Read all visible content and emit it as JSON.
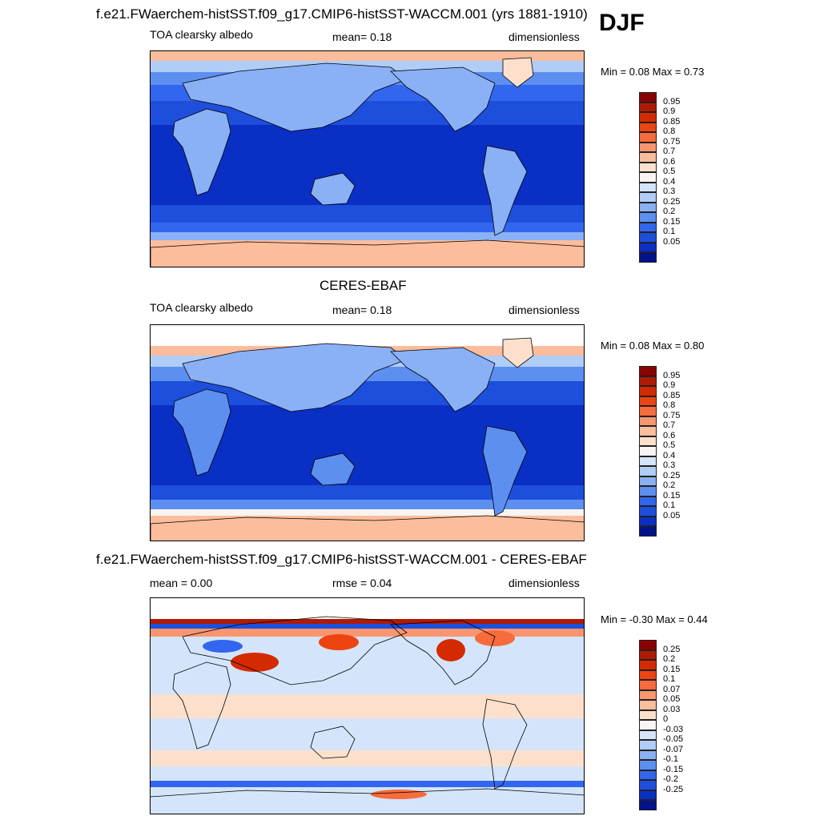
{
  "season": "DJF",
  "panels": [
    {
      "id": "model",
      "title": "f.e21.FWaerchem-histSST.f09_g17.CMIP6-histSST-WACCM.001 (yrs 1881-1910)",
      "left_label": "TOA clearsky albedo",
      "center_label": "mean=   0.18",
      "right_label": "dimensionless",
      "minmax": "Min =   0.08 Max =   0.73"
    },
    {
      "id": "obs",
      "title": "CERES-EBAF",
      "left_label": "TOA clearsky albedo",
      "center_label": "mean=   0.18",
      "right_label": "dimensionless",
      "minmax": "Min =   0.08 Max =   0.80"
    },
    {
      "id": "diff",
      "title": "f.e21.FWaerchem-histSST.f09_g17.CMIP6-histSST-WACCM.001 - CERES-EBAF",
      "left_label": "mean =   0.00",
      "center_label": "rmse =   0.04",
      "right_label": "dimensionless",
      "minmax": "Min =  -0.30 Max =   0.44"
    }
  ],
  "colorbars": {
    "albedo": {
      "labels": [
        "0.95",
        "0.9",
        "0.85",
        "0.8",
        "0.75",
        "0.7",
        "0.6",
        "0.5",
        "0.4",
        "0.3",
        "0.25",
        "0.2",
        "0.15",
        "0.1",
        "0.05"
      ],
      "colors": [
        "#8b0000",
        "#b01a00",
        "#d42a00",
        "#ee4411",
        "#f76b3c",
        "#f99670",
        "#fbbd9c",
        "#fde0cc",
        "#f8f4f2",
        "#d4e5fb",
        "#b0cdf8",
        "#8ab0f5",
        "#5c8ff0",
        "#3366ee",
        "#1d4fdc",
        "#0a2fc4",
        "#00138a"
      ]
    },
    "diff": {
      "labels": [
        "0.25",
        "0.2",
        "0.15",
        "0.1",
        "0.07",
        "0.05",
        "0.03",
        "0",
        "-0.03",
        "-0.05",
        "-0.07",
        "-0.1",
        "-0.15",
        "-0.2",
        "-0.25"
      ],
      "colors": [
        "#8b0000",
        "#b01a00",
        "#d42a00",
        "#ee4411",
        "#f76b3c",
        "#f99670",
        "#fbbd9c",
        "#fde0cc",
        "#f8f4f2",
        "#d4e5fb",
        "#b0cdf8",
        "#8ab0f5",
        "#5c8ff0",
        "#3366ee",
        "#1d4fdc",
        "#0a2fc4",
        "#00138a"
      ]
    }
  },
  "chart_data": [
    {
      "type": "heatmap",
      "title": "f.e21.FWaerchem-histSST.f09_g17.CMIP6-histSST-WACCM.001 (yrs 1881-1910)",
      "variable": "TOA clearsky albedo",
      "units": "dimensionless",
      "season": "DJF",
      "mean": 0.18,
      "min": 0.08,
      "max": 0.73,
      "levels": [
        0.05,
        0.1,
        0.15,
        0.2,
        0.25,
        0.3,
        0.4,
        0.5,
        0.6,
        0.7,
        0.75,
        0.8,
        0.85,
        0.9,
        0.95
      ]
    },
    {
      "type": "heatmap",
      "title": "CERES-EBAF",
      "variable": "TOA clearsky albedo",
      "units": "dimensionless",
      "season": "DJF",
      "mean": 0.18,
      "min": 0.08,
      "max": 0.8,
      "levels": [
        0.05,
        0.1,
        0.15,
        0.2,
        0.25,
        0.3,
        0.4,
        0.5,
        0.6,
        0.7,
        0.75,
        0.8,
        0.85,
        0.9,
        0.95
      ]
    },
    {
      "type": "heatmap",
      "title": "f.e21.FWaerchem-histSST.f09_g17.CMIP6-histSST-WACCM.001 - CERES-EBAF",
      "units": "dimensionless",
      "season": "DJF",
      "mean": 0.0,
      "rmse": 0.04,
      "min": -0.3,
      "max": 0.44,
      "levels": [
        -0.25,
        -0.2,
        -0.15,
        -0.1,
        -0.07,
        -0.05,
        -0.03,
        0,
        0.03,
        0.05,
        0.07,
        0.1,
        0.15,
        0.2,
        0.25
      ]
    }
  ]
}
